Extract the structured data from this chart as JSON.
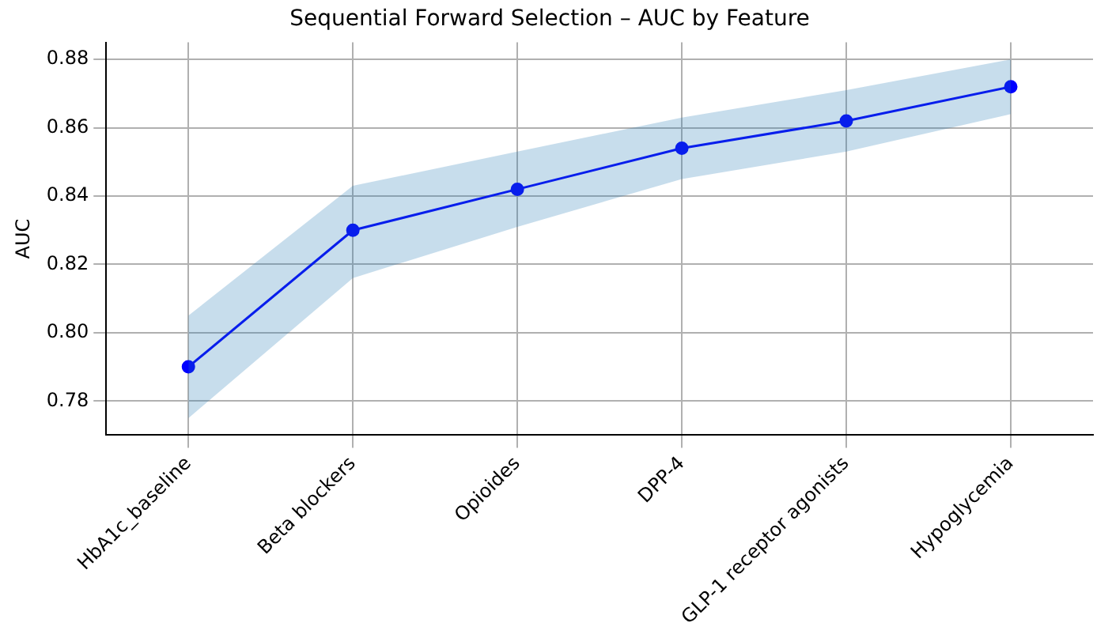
{
  "chart_data": {
    "type": "line",
    "title": "Sequential Forward Selection – AUC by Feature",
    "ylabel": "AUC",
    "categories": [
      "HbA1c_baseline",
      "Beta blockers",
      "Opioides",
      "DPP-4",
      "GLP-1 receptor agonists",
      "Hypoglycemia"
    ],
    "series": [
      {
        "color": "#0000ff",
        "values": [
          0.79,
          0.83,
          0.842,
          0.854,
          0.862,
          0.872
        ],
        "lower": [
          0.775,
          0.816,
          0.831,
          0.845,
          0.853,
          0.864
        ],
        "upper": [
          0.805,
          0.843,
          0.853,
          0.863,
          0.871,
          0.88
        ]
      }
    ],
    "ylim": [
      0.77,
      0.885
    ],
    "yticks": [
      0.78,
      {
        "value": 0.8,
        "label": "0.80"
      },
      0.82,
      0.84,
      0.86,
      0.88
    ],
    "grid": true,
    "legend": false,
    "marker": "circle",
    "line_style": "solid"
  }
}
